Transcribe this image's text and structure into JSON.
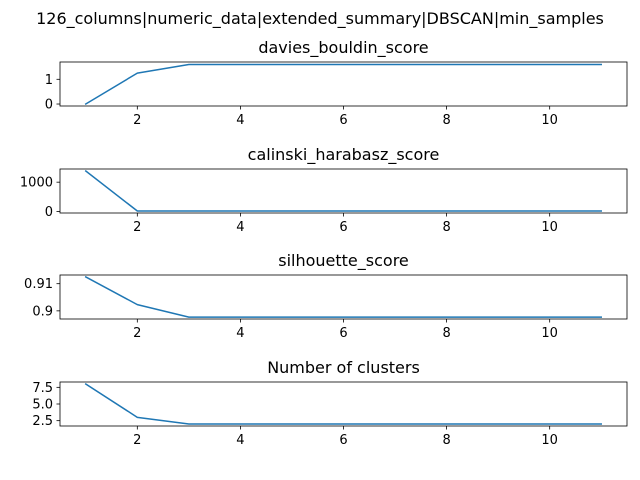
{
  "figure": {
    "suptitle": "126_columns|numeric_data|extended_summary|DBSCAN|min_samples",
    "line_color": "#1f77b4"
  },
  "chart_data": [
    {
      "type": "line",
      "title": "davies_bouldin_score",
      "x": [
        1,
        2,
        3,
        4,
        5,
        6,
        7,
        8,
        9,
        10,
        11
      ],
      "y": [
        0.0,
        1.25,
        1.6,
        1.6,
        1.6,
        1.6,
        1.6,
        1.6,
        1.6,
        1.6,
        1.6
      ],
      "xlim": [
        0.5,
        11.5
      ],
      "ylim": [
        -0.08,
        1.7
      ],
      "xticks": [
        2,
        4,
        6,
        8,
        10
      ],
      "yticks": [
        0,
        1
      ],
      "xlabel": "",
      "ylabel": ""
    },
    {
      "type": "line",
      "title": "calinski_harabasz_score",
      "x": [
        1,
        2,
        3,
        4,
        5,
        6,
        7,
        8,
        9,
        10,
        11
      ],
      "y": [
        1380,
        20,
        20,
        20,
        20,
        20,
        20,
        20,
        20,
        20,
        20
      ],
      "xlim": [
        0.5,
        11.5
      ],
      "ylim": [
        -48,
        1448
      ],
      "xticks": [
        2,
        4,
        6,
        8,
        10
      ],
      "yticks": [
        0,
        1000
      ],
      "xlabel": "",
      "ylabel": ""
    },
    {
      "type": "line",
      "title": "silhouette_score",
      "x": [
        1,
        2,
        3,
        4,
        5,
        6,
        7,
        8,
        9,
        10,
        11
      ],
      "y": [
        0.9125,
        0.9023,
        0.8977,
        0.8977,
        0.8977,
        0.8977,
        0.8977,
        0.8977,
        0.8977,
        0.8977,
        0.8977
      ],
      "xlim": [
        0.5,
        11.5
      ],
      "ylim": [
        0.897,
        0.9132
      ],
      "xticks": [
        2,
        4,
        6,
        8,
        10
      ],
      "yticks": [
        0.9,
        0.91
      ],
      "xlabel": "",
      "ylabel": ""
    },
    {
      "type": "line",
      "title": "Number of clusters",
      "x": [
        1,
        2,
        3,
        4,
        5,
        6,
        7,
        8,
        9,
        10,
        11
      ],
      "y": [
        8,
        3,
        2,
        2,
        2,
        2,
        2,
        2,
        2,
        2,
        2
      ],
      "xlim": [
        0.5,
        11.5
      ],
      "ylim": [
        1.7,
        8.3
      ],
      "xticks": [
        2,
        4,
        6,
        8,
        10
      ],
      "yticks": [
        2.5,
        5.0,
        7.5
      ],
      "ytick_labels": [
        "2.5",
        "5.0",
        "7.5"
      ],
      "xlabel": "",
      "ylabel": ""
    }
  ]
}
